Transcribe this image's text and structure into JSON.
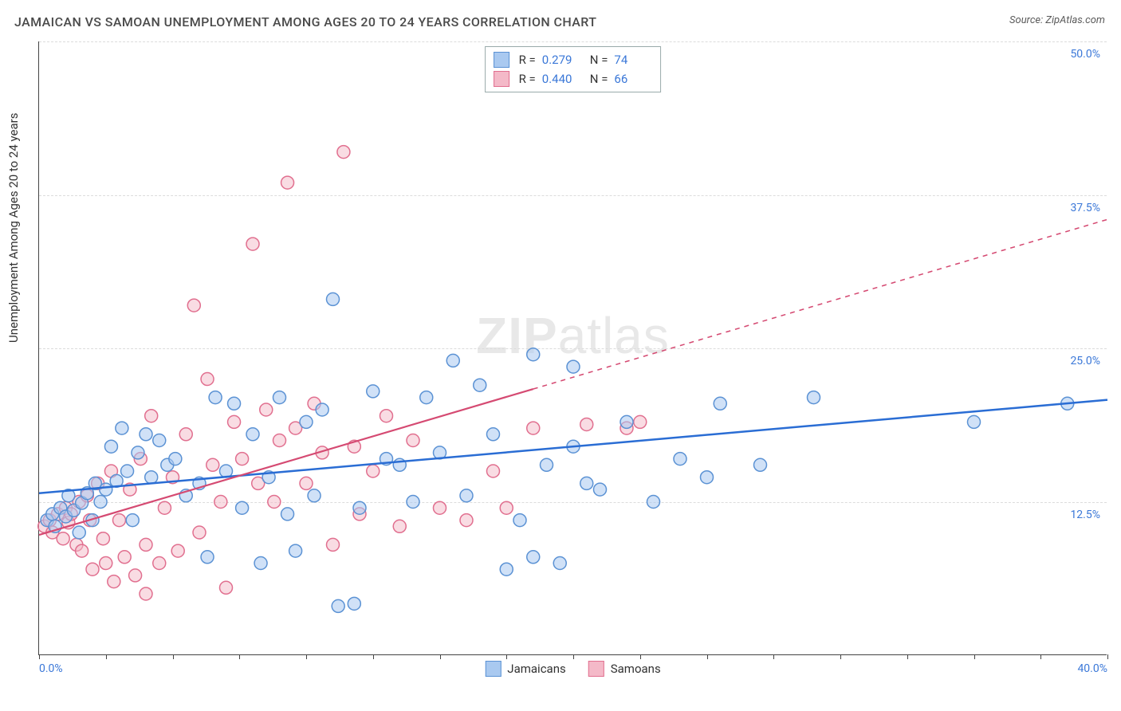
{
  "title": "JAMAICAN VS SAMOAN UNEMPLOYMENT AMONG AGES 20 TO 24 YEARS CORRELATION CHART",
  "source": "Source: ZipAtlas.com",
  "y_axis_label": "Unemployment Among Ages 20 to 24 years",
  "watermark_bold": "ZIP",
  "watermark_light": "atlas",
  "chart": {
    "type": "scatter",
    "xlim": [
      0,
      40
    ],
    "ylim": [
      0,
      50
    ],
    "x_ticks": [
      0,
      2.5,
      5,
      7.5,
      10,
      12.5,
      15,
      17.5,
      20,
      22.5,
      25,
      27.5,
      30,
      32.5,
      35,
      37.5,
      40
    ],
    "x_tick_labels": {
      "0": "0.0%",
      "40": "40.0%"
    },
    "y_gridlines": [
      12.5,
      25,
      37.5,
      50
    ],
    "y_tick_labels": {
      "12.5": "12.5%",
      "25": "25.0%",
      "37.5": "37.5%",
      "50": "50.0%"
    },
    "grid_color": "#dcdcdc",
    "background_color": "#ffffff",
    "marker_radius": 8,
    "marker_stroke_width": 1.5,
    "series": [
      {
        "name": "Jamaicans",
        "fill": "#a9c9f0",
        "stroke": "#5b92d4",
        "fill_opacity": 0.55,
        "R": "0.279",
        "N": "74",
        "trend": {
          "x1": 0,
          "y1": 13.2,
          "x2": 40,
          "y2": 20.8,
          "solid_until_x": 40,
          "color": "#2a6dd4",
          "width": 2.5
        },
        "points": [
          [
            0.3,
            11.0
          ],
          [
            0.5,
            11.5
          ],
          [
            0.6,
            10.5
          ],
          [
            0.8,
            12.0
          ],
          [
            1.0,
            11.3
          ],
          [
            1.1,
            13.0
          ],
          [
            1.3,
            11.8
          ],
          [
            1.5,
            10.0
          ],
          [
            1.6,
            12.4
          ],
          [
            1.8,
            13.2
          ],
          [
            2.0,
            11.0
          ],
          [
            2.1,
            14.0
          ],
          [
            2.3,
            12.5
          ],
          [
            2.5,
            13.5
          ],
          [
            2.7,
            17.0
          ],
          [
            2.9,
            14.2
          ],
          [
            3.1,
            18.5
          ],
          [
            3.3,
            15.0
          ],
          [
            3.5,
            11.0
          ],
          [
            3.7,
            16.5
          ],
          [
            4.0,
            18.0
          ],
          [
            4.2,
            14.5
          ],
          [
            4.5,
            17.5
          ],
          [
            4.8,
            15.5
          ],
          [
            5.1,
            16.0
          ],
          [
            5.5,
            13.0
          ],
          [
            6.0,
            14.0
          ],
          [
            6.3,
            8.0
          ],
          [
            6.6,
            21.0
          ],
          [
            7.0,
            15.0
          ],
          [
            7.3,
            20.5
          ],
          [
            7.6,
            12.0
          ],
          [
            8.0,
            18.0
          ],
          [
            8.3,
            7.5
          ],
          [
            8.6,
            14.5
          ],
          [
            9.0,
            21.0
          ],
          [
            9.3,
            11.5
          ],
          [
            9.6,
            8.5
          ],
          [
            10.0,
            19.0
          ],
          [
            10.3,
            13.0
          ],
          [
            10.6,
            20.0
          ],
          [
            11.0,
            29.0
          ],
          [
            11.2,
            4.0
          ],
          [
            11.8,
            4.2
          ],
          [
            12.0,
            12.0
          ],
          [
            12.5,
            21.5
          ],
          [
            13.0,
            16.0
          ],
          [
            13.5,
            15.5
          ],
          [
            14.0,
            12.5
          ],
          [
            14.5,
            21.0
          ],
          [
            15.0,
            16.5
          ],
          [
            15.5,
            24.0
          ],
          [
            16.0,
            13.0
          ],
          [
            16.5,
            22.0
          ],
          [
            17.0,
            18.0
          ],
          [
            17.5,
            7.0
          ],
          [
            18.0,
            11.0
          ],
          [
            18.5,
            8.0
          ],
          [
            19.0,
            15.5
          ],
          [
            19.5,
            7.5
          ],
          [
            20.0,
            17.0
          ],
          [
            20.5,
            14.0
          ],
          [
            21.0,
            13.5
          ],
          [
            22.0,
            19.0
          ],
          [
            23.0,
            12.5
          ],
          [
            24.0,
            16.0
          ],
          [
            25.0,
            14.5
          ],
          [
            25.5,
            20.5
          ],
          [
            27.0,
            15.5
          ],
          [
            29.0,
            21.0
          ],
          [
            35.0,
            19.0
          ],
          [
            38.5,
            20.5
          ],
          [
            18.5,
            24.5
          ],
          [
            20.0,
            23.5
          ]
        ]
      },
      {
        "name": "Samoans",
        "fill": "#f4b9c8",
        "stroke": "#e16f8f",
        "fill_opacity": 0.5,
        "R": "0.440",
        "N": "66",
        "trend": {
          "x1": 0,
          "y1": 9.8,
          "x2": 40,
          "y2": 35.5,
          "solid_until_x": 18.5,
          "color": "#d54a72",
          "width": 2.2,
          "dash": "6 6"
        },
        "points": [
          [
            0.2,
            10.5
          ],
          [
            0.4,
            11.0
          ],
          [
            0.5,
            10.0
          ],
          [
            0.7,
            11.5
          ],
          [
            0.9,
            9.5
          ],
          [
            1.0,
            12.0
          ],
          [
            1.1,
            10.8
          ],
          [
            1.2,
            11.5
          ],
          [
            1.4,
            9.0
          ],
          [
            1.5,
            12.5
          ],
          [
            1.6,
            8.5
          ],
          [
            1.8,
            13.0
          ],
          [
            1.9,
            11.0
          ],
          [
            2.0,
            7.0
          ],
          [
            2.2,
            14.0
          ],
          [
            2.4,
            9.5
          ],
          [
            2.5,
            7.5
          ],
          [
            2.7,
            15.0
          ],
          [
            2.8,
            6.0
          ],
          [
            3.0,
            11.0
          ],
          [
            3.2,
            8.0
          ],
          [
            3.4,
            13.5
          ],
          [
            3.6,
            6.5
          ],
          [
            3.8,
            16.0
          ],
          [
            4.0,
            9.0
          ],
          [
            4.2,
            19.5
          ],
          [
            4.5,
            7.5
          ],
          [
            4.7,
            12.0
          ],
          [
            5.0,
            14.5
          ],
          [
            5.2,
            8.5
          ],
          [
            5.5,
            18.0
          ],
          [
            5.8,
            28.5
          ],
          [
            6.0,
            10.0
          ],
          [
            6.3,
            22.5
          ],
          [
            6.5,
            15.5
          ],
          [
            6.8,
            12.5
          ],
          [
            7.0,
            5.5
          ],
          [
            7.3,
            19.0
          ],
          [
            7.6,
            16.0
          ],
          [
            8.0,
            33.5
          ],
          [
            8.2,
            14.0
          ],
          [
            8.5,
            20.0
          ],
          [
            8.8,
            12.5
          ],
          [
            9.0,
            17.5
          ],
          [
            9.3,
            38.5
          ],
          [
            9.6,
            18.5
          ],
          [
            10.0,
            14.0
          ],
          [
            10.3,
            20.5
          ],
          [
            10.6,
            16.5
          ],
          [
            11.0,
            9.0
          ],
          [
            11.4,
            41.0
          ],
          [
            11.8,
            17.0
          ],
          [
            12.0,
            11.5
          ],
          [
            12.5,
            15.0
          ],
          [
            13.0,
            19.5
          ],
          [
            13.5,
            10.5
          ],
          [
            14.0,
            17.5
          ],
          [
            15.0,
            12.0
          ],
          [
            16.0,
            11.0
          ],
          [
            17.0,
            15.0
          ],
          [
            18.5,
            18.5
          ],
          [
            20.5,
            18.8
          ],
          [
            22.0,
            18.5
          ],
          [
            22.5,
            19.0
          ],
          [
            17.5,
            12.0
          ],
          [
            4.0,
            5.0
          ]
        ]
      }
    ]
  },
  "legend_bottom_labels": [
    "Jamaicans",
    "Samoans"
  ]
}
